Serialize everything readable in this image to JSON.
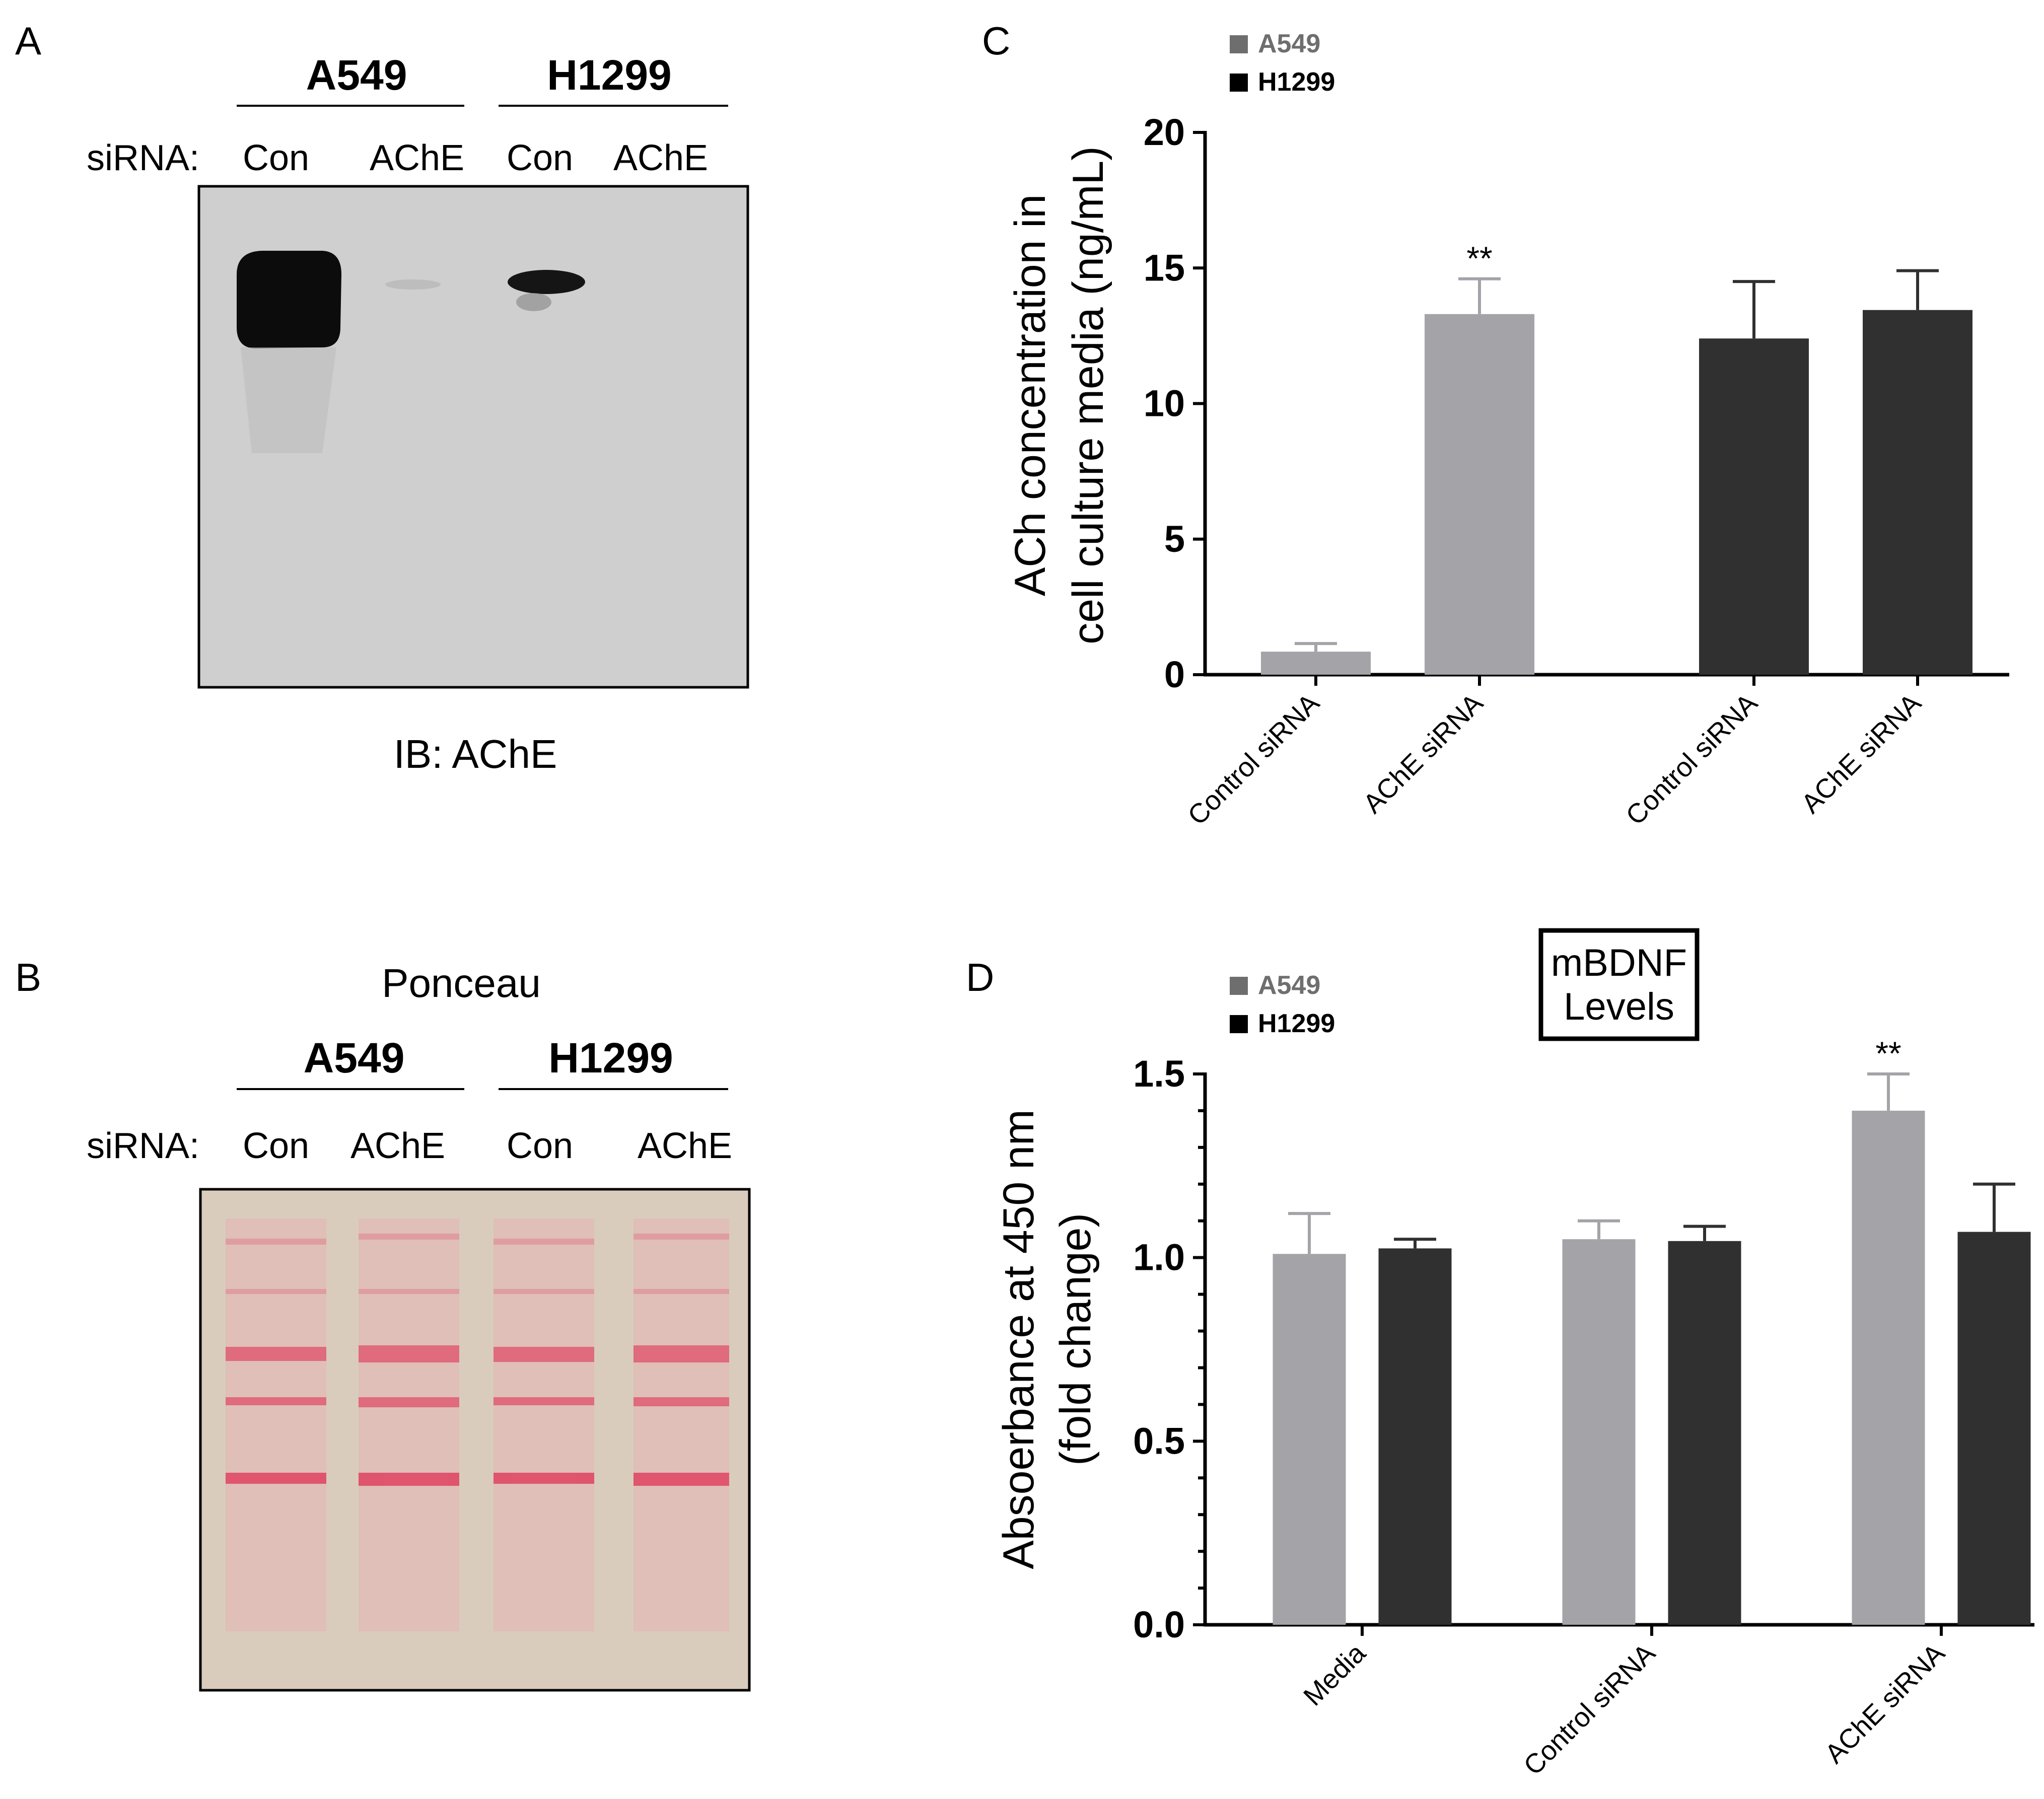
{
  "panels": {
    "a": {
      "letter": "A",
      "groups": [
        "A549",
        "H1299"
      ],
      "row_label": "siRNA:",
      "lanes": [
        "Con",
        "AChE",
        "Con",
        "AChE"
      ],
      "caption": "IB: AChE"
    },
    "b": {
      "letter": "B",
      "title": "Ponceau",
      "groups": [
        "A549",
        "H1299"
      ],
      "row_label": "siRNA:",
      "lanes": [
        "Con",
        "AChE",
        "Con",
        "AChE"
      ]
    },
    "c": {
      "letter": "C"
    },
    "d": {
      "letter": "D",
      "boxed_title_line1": "mBDNF",
      "boxed_title_line2": "Levels"
    }
  },
  "colors": {
    "a549_bar": "#a3a3a8",
    "h1299_bar": "#303030",
    "a549_legend": "#6e6e6e",
    "h1299_legend": "#000000",
    "ponceau_bg": "#d9ccbc",
    "ponceau_band": "#e0506a",
    "blot_bg": "#cfcfcf"
  },
  "chart_data": [
    {
      "type": "bar",
      "panel": "C",
      "ylabel_line1": "ACh concentration in",
      "ylabel_line2": "cell culture media (ng/mL)",
      "ylim": [
        0,
        20
      ],
      "yticks": [
        "0",
        "5",
        "10",
        "15",
        "20"
      ],
      "legend": [
        "A549",
        "H1299"
      ],
      "categories": [
        "Control siRNA",
        "AChE siRNA",
        "Control siRNA",
        "AChE siRNA"
      ],
      "values": [
        0.85,
        13.3,
        12.4,
        13.45
      ],
      "errors": [
        0.3,
        1.3,
        2.1,
        1.45
      ],
      "series_of_bar": [
        "A549",
        "A549",
        "H1299",
        "H1299"
      ],
      "annotations": [
        "",
        "**",
        "",
        ""
      ]
    },
    {
      "type": "bar",
      "panel": "D",
      "ylabel_line1": "Absoerbance at 450 nm",
      "ylabel_line2": "(fold change)",
      "ylim": [
        0,
        1.5
      ],
      "yticks": [
        "0.0",
        "0.5",
        "1.0",
        "1.5"
      ],
      "legend": [
        "A549",
        "H1299"
      ],
      "categories": [
        "Media",
        "Control siRNA",
        "AChE siRNA"
      ],
      "series": [
        {
          "name": "A549",
          "values": [
            1.01,
            1.05,
            1.4
          ],
          "errors": [
            0.11,
            0.05,
            0.1
          ],
          "annotations": [
            "",
            "",
            "**"
          ]
        },
        {
          "name": "H1299",
          "values": [
            1.025,
            1.045,
            1.07
          ],
          "errors": [
            0.025,
            0.04,
            0.13
          ],
          "annotations": [
            "",
            "",
            ""
          ]
        }
      ]
    }
  ]
}
